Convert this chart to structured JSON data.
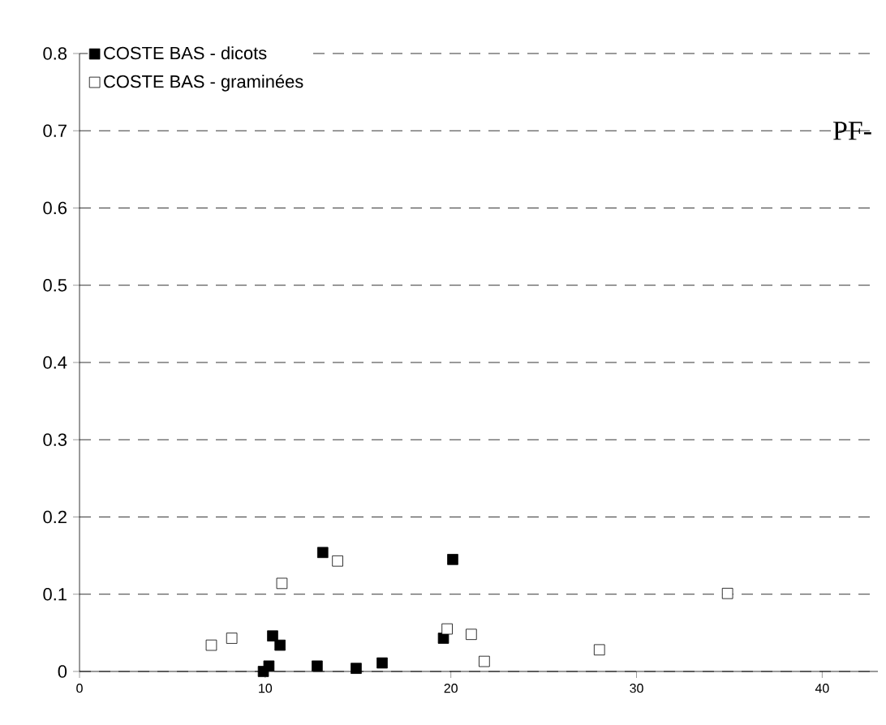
{
  "chart_data": {
    "type": "scatter",
    "annotations": [
      "PF-"
    ],
    "series": [
      {
        "name": "COSTE BAS - dicots",
        "color": "#000000",
        "x": [
          9.9,
          10.2,
          10.4,
          10.8,
          13.1,
          12.8,
          14.9,
          16.3,
          19.6,
          20.1
        ],
        "values": [
          0.0,
          0.007,
          0.046,
          0.034,
          0.154,
          0.007,
          0.004,
          0.011,
          0.043,
          0.145
        ]
      },
      {
        "name": "COSTE BAS - graminées",
        "color": "#ffffff",
        "x": [
          7.1,
          8.2,
          10.9,
          13.9,
          19.8,
          21.1,
          21.8,
          28.0,
          34.9
        ],
        "values": [
          0.034,
          0.043,
          0.114,
          0.143,
          0.055,
          0.048,
          0.013,
          0.028,
          0.101
        ]
      }
    ],
    "xlim": [
      0,
      43
    ],
    "xticks": [
      0,
      10,
      20,
      30,
      40
    ],
    "ylim": [
      0,
      0.8
    ],
    "yticks": [
      0,
      0.1,
      0.2,
      0.3,
      0.4,
      0.5,
      0.6,
      0.7,
      0.8
    ],
    "grid": "y",
    "legend": "top left",
    "marker": "square"
  }
}
